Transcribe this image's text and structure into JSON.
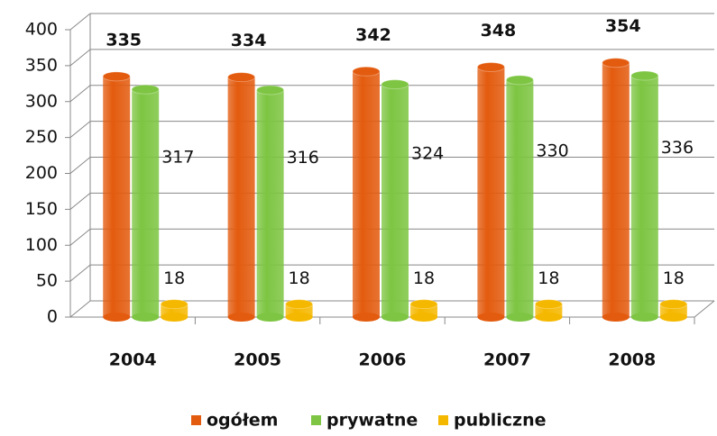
{
  "chart_data": {
    "type": "bar",
    "categories": [
      "2004",
      "2005",
      "2006",
      "2007",
      "2008"
    ],
    "series": [
      {
        "name": "ogółem",
        "color": "#e35b0e",
        "values": [
          335,
          334,
          342,
          348,
          354
        ]
      },
      {
        "name": "prywatne",
        "color": "#7dc542",
        "values": [
          317,
          316,
          324,
          330,
          336
        ]
      },
      {
        "name": "publiczne",
        "color": "#f5b800",
        "values": [
          18,
          18,
          18,
          18,
          18
        ]
      }
    ],
    "ylim": [
      0,
      400
    ],
    "yticks": [
      0,
      50,
      100,
      150,
      200,
      250,
      300,
      350,
      400
    ],
    "grid": true,
    "legend": "bottom"
  }
}
